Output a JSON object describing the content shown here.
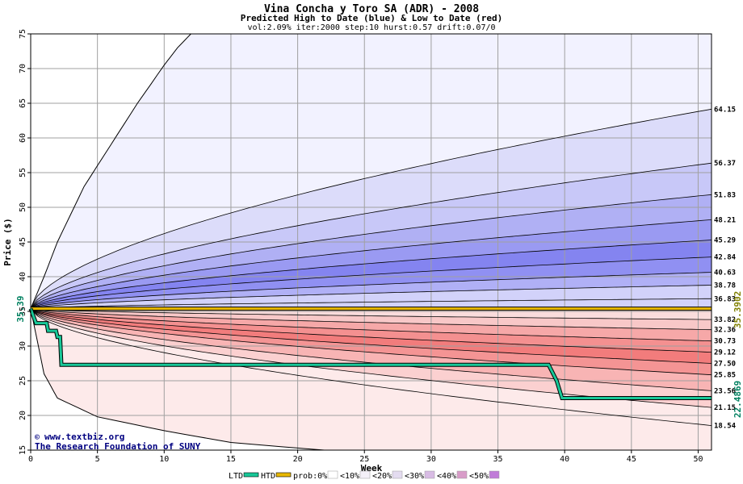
{
  "chart_data": {
    "type": "area",
    "title": "Vina Concha y Toro SA (ADR) - 2008",
    "subtitle": "Predicted High to Date (blue) &  Low to Date (red)",
    "params": "vol:2.09% iter:2000 step:10 hurst:0.57 drift:0.07/0",
    "xlabel": "Week",
    "ylabel": "Price ($)",
    "xlim": [
      0,
      51
    ],
    "ylim": [
      15,
      75
    ],
    "x_ticks": [
      "0",
      "5",
      "10",
      "15",
      "20",
      "25",
      "30",
      "35",
      "40",
      "45",
      "50"
    ],
    "y_ticks": [
      "15",
      "20",
      "25",
      "30",
      "35",
      "40",
      "45",
      "50",
      "55",
      "60",
      "65",
      "70",
      "75"
    ],
    "grid": true,
    "start_price": 35.39,
    "start_label": "35.39",
    "current_price": 35.3902,
    "current_label": "35.3902",
    "htd_label_value": "22.4869",
    "credit_lines": [
      "www.textbiz.org",
      "The Research Foundation of SUNY"
    ],
    "high_to_date_end_values": [
      64.15,
      56.37,
      51.83,
      48.21,
      45.29,
      42.84,
      40.63,
      38.78,
      36.83
    ],
    "low_to_date_end_values": [
      33.82,
      32.36,
      30.73,
      29.12,
      27.5,
      25.85,
      23.56,
      21.15,
      18.54
    ],
    "high_to_date_end_labels": [
      "64.15",
      "56.37",
      "51.83",
      "48.21",
      "45.29",
      "42.84",
      "40.63",
      "38.78",
      "36.83"
    ],
    "low_to_date_end_labels": [
      "33.82",
      "32.36",
      "30.73",
      "29.12",
      "27.50",
      "25.85",
      "23.56",
      "21.15",
      "18.54"
    ],
    "outer_high_envelope": [
      [
        0,
        35.39
      ],
      [
        1,
        40
      ],
      [
        2,
        45
      ],
      [
        4,
        53
      ],
      [
        6,
        59
      ],
      [
        8,
        65
      ],
      [
        10,
        70.5
      ],
      [
        11,
        73
      ],
      [
        12,
        75
      ]
    ],
    "outer_low_envelope": [
      [
        0,
        35.39
      ],
      [
        1,
        26
      ],
      [
        2,
        22.5
      ],
      [
        5,
        19.8
      ],
      [
        10,
        17.8
      ],
      [
        15,
        16.1
      ],
      [
        20,
        15.3
      ],
      [
        22,
        15
      ]
    ],
    "ltd_series": [
      [
        0,
        35.39
      ],
      [
        0.4,
        33.3
      ],
      [
        1.2,
        33.3
      ],
      [
        1.3,
        32.2
      ],
      [
        1.9,
        32.2
      ],
      [
        2,
        31.3
      ],
      [
        2.2,
        31.3
      ],
      [
        2.3,
        27.3
      ],
      [
        38.8,
        27.3
      ],
      [
        39.4,
        25
      ],
      [
        39.8,
        22.5
      ],
      [
        51,
        22.5
      ]
    ],
    "htd_series": [
      [
        0,
        35.39
      ],
      [
        51,
        35.39
      ]
    ],
    "colors": {
      "blue_bands": [
        "#f2f2ff",
        "#dcdcfa",
        "#c8c8f8",
        "#b0b0f4",
        "#9a9af2",
        "#8484f0",
        "#9090f2",
        "#b0b0f6",
        "#d2d2fa"
      ],
      "red_bands": [
        "#fadcdc",
        "#f8c8c8",
        "#f6a8a8",
        "#f49090",
        "#f27c7c",
        "#f49494",
        "#f8b4b4",
        "#fbd0d0",
        "#fdeaea"
      ],
      "ltd_line": "#18c898",
      "htd_line": "#e8b800",
      "current_label_color": "#808000",
      "htd_label_color": "#008060",
      "credit_color": "#000080"
    },
    "legend": [
      {
        "label": "LTD",
        "kind": "line",
        "color": "#18c898"
      },
      {
        "label": "HTD",
        "kind": "line",
        "color": "#e8b800"
      },
      {
        "label": "prob:0%",
        "kind": "swatch",
        "color": "#ffffff"
      },
      {
        "label": "<10%",
        "kind": "swatch",
        "color": "#f4f0f8"
      },
      {
        "label": "<20%",
        "kind": "swatch",
        "color": "#e4dcf0"
      },
      {
        "label": "<30%",
        "kind": "swatch",
        "color": "#d8bce4"
      },
      {
        "label": "<40%",
        "kind": "swatch",
        "color": "#d89cc8"
      },
      {
        "label": "<50%",
        "kind": "swatch",
        "color": "#c07cd8"
      }
    ]
  }
}
